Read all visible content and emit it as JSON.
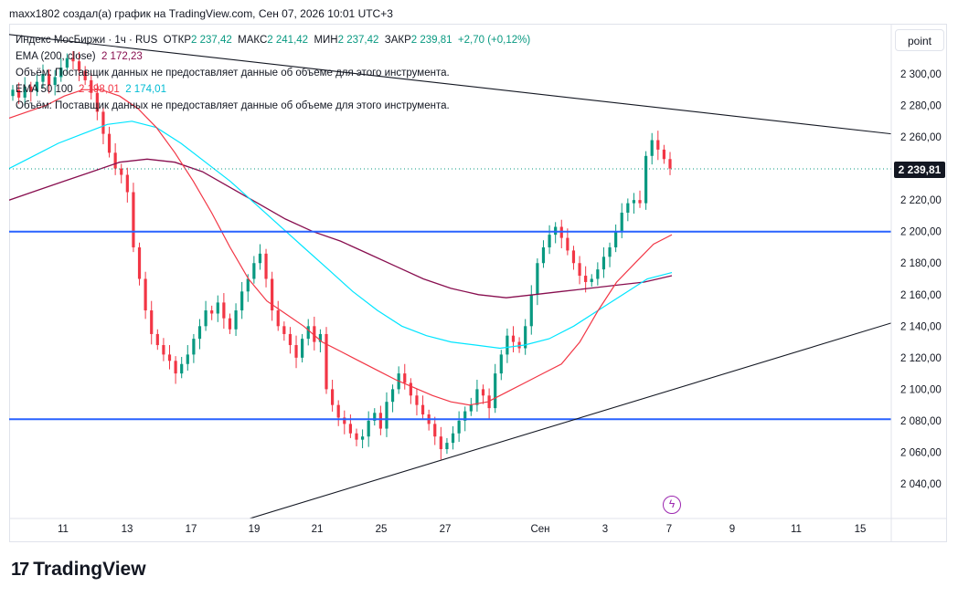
{
  "header": "maxx1802 создал(а) график на TradingView.com, Сен 07, 2026 10:01 UTC+3",
  "legend": {
    "symbol": "Индекс МосБиржи · 1ч · RUS",
    "o_label": "ОТКР",
    "o_val": "2 237,42",
    "h_label": "МАКС",
    "h_val": "2 241,42",
    "l_label": "МИН",
    "l_val": "2 237,42",
    "c_label": "ЗАКР",
    "c_val": "2 239,81",
    "chg": "+2,70 (+0,12%)",
    "ema200": "EMA (200, close)",
    "ema200_val": "2 172,23",
    "vol_msg": "Объём: Поставщик данных не предоставляет данные об объеме для этого инструмента.",
    "ema_pair": "EMA 50 100",
    "ema50_val": "2 198,01",
    "ema100_val": "2 174,01",
    "vol_msg2": "Объём: Поставщик данных не предоставляет данные об объеме для этого инструмента."
  },
  "scale_button": "point",
  "last_price": "2 239,81",
  "footer_brand": "TradingView",
  "colors": {
    "up": "#089981",
    "down": "#f23645",
    "ema50": "#f23645",
    "ema100": "#00e5ff",
    "ema200": "#880e4f",
    "level": "#2962ff"
  },
  "chart_data": {
    "type": "candlestick",
    "y_ticks": [
      "2 300,00",
      "2 280,00",
      "2 260,00",
      "2 220,00",
      "2 200,00",
      "2 180,00",
      "2 160,00",
      "2 140,00",
      "2 120,00",
      "2 100,00",
      "2 080,00",
      "2 060,00",
      "2 040,00"
    ],
    "y_tick_values": [
      2300,
      2280,
      2260,
      2220,
      2200,
      2180,
      2160,
      2140,
      2120,
      2100,
      2080,
      2060,
      2040
    ],
    "x_ticks": [
      "11",
      "13",
      "17",
      "19",
      "21",
      "25",
      "27",
      "Сен",
      "3",
      "7",
      "9",
      "11",
      "15"
    ],
    "ylim": [
      2030,
      2320
    ],
    "horizontal_levels": [
      2200,
      2081
    ],
    "trendlines": [
      {
        "name": "resistance",
        "from": [
          0,
          2325
        ],
        "to": [
          1,
          2262
        ]
      },
      {
        "name": "support",
        "from": [
          0.22,
          2009
        ],
        "to": [
          1,
          2142
        ]
      }
    ],
    "closes": [
      2290,
      2285,
      2292,
      2289,
      2295,
      2300,
      2293,
      2298,
      2304,
      2310,
      2308,
      2302,
      2296,
      2288,
      2276,
      2262,
      2250,
      2240,
      2236,
      2225,
      2190,
      2170,
      2150,
      2135,
      2128,
      2122,
      2118,
      2110,
      2116,
      2122,
      2132,
      2140,
      2150,
      2148,
      2155,
      2145,
      2138,
      2150,
      2162,
      2170,
      2180,
      2186,
      2170,
      2150,
      2140,
      2135,
      2128,
      2120,
      2132,
      2140,
      2130,
      2135,
      2100,
      2090,
      2082,
      2078,
      2072,
      2068,
      2070,
      2080,
      2085,
      2075,
      2092,
      2100,
      2110,
      2104,
      2096,
      2090,
      2084,
      2078,
      2070,
      2062,
      2066,
      2072,
      2080,
      2086,
      2090,
      2100,
      2096,
      2088,
      2110,
      2122,
      2134,
      2130,
      2126,
      2140,
      2160,
      2180,
      2190,
      2198,
      2203,
      2196,
      2188,
      2180,
      2172,
      2168,
      2170,
      2176,
      2184,
      2190,
      2200,
      2212,
      2218,
      2220,
      2218,
      2248,
      2258,
      2252,
      2246,
      2240
    ],
    "ema50": [
      2272,
      2276,
      2280,
      2286,
      2290,
      2290,
      2286,
      2278,
      2266,
      2250,
      2232,
      2212,
      2190,
      2170,
      2156,
      2148,
      2140,
      2130,
      2124,
      2118,
      2112,
      2106,
      2101,
      2096,
      2092,
      2090,
      2092,
      2098,
      2104,
      2110,
      2116,
      2130,
      2150,
      2168,
      2180,
      2192,
      2198
    ],
    "ema100": [
      2240,
      2248,
      2256,
      2262,
      2268,
      2270,
      2266,
      2256,
      2244,
      2232,
      2218,
      2204,
      2190,
      2176,
      2162,
      2150,
      2140,
      2134,
      2130,
      2128,
      2126,
      2128,
      2132,
      2140,
      2150,
      2160,
      2170,
      2174
    ],
    "ema200": [
      2220,
      2226,
      2232,
      2238,
      2244,
      2246,
      2244,
      2238,
      2228,
      2218,
      2208,
      2200,
      2194,
      2186,
      2178,
      2170,
      2164,
      2160,
      2158,
      2160,
      2162,
      2164,
      2166,
      2168,
      2172
    ]
  }
}
